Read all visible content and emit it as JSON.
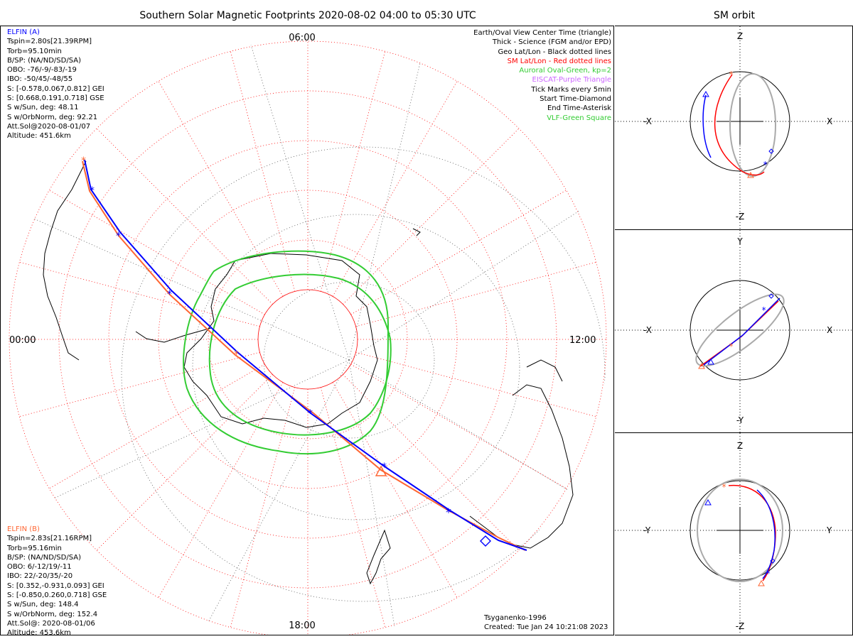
{
  "main_title": "Southern Solar Magnetic Footprints 2020-08-02 04:00 to 05:30 UTC",
  "orbit_title": "SM orbit",
  "hour_labels": {
    "top": "06:00",
    "left": "00:00",
    "right": "12:00",
    "bottom": "18:00"
  },
  "elfin_a": {
    "name": "ELFIN (A)",
    "color": "#0000ff",
    "lines": [
      "Tspin=2.80s[21.39RPM]",
      "Torb=95.10min",
      "B/SP: (NA/ND/SD/SA)",
      "OBO: -76/-9/-83/-19",
      "IBO: -50/45/-48/55",
      "S: [-0.578,0.067,0.812] GEI",
      "S: [0.668,0.191,0.718] GSE",
      "S w/Sun, deg: 48.11",
      "S w/OrbNorm, deg: 92.21",
      "Att.Sol@2020-08-01/07",
      "Altitude: 451.6km"
    ]
  },
  "elfin_b": {
    "name": "ELFIN (B)",
    "color": "#ff6633",
    "lines": [
      "Tspin=2.83s[21.16RPM]",
      "Torb=95.16min",
      "B/SP: (NA/ND/SD/SA)",
      "OBO: 6/-12/19/-11",
      "IBO: 22/-20/35/-20",
      "S: [0.352,-0.931,0.093] GEI",
      "S: [-0.850,0.260,0.718] GSE",
      "S w/Sun, deg: 148.4",
      "S w/OrbNorm, deg: 152.4",
      "Att.Sol@: 2020-08-01/06",
      "Altitude: 453.6km"
    ]
  },
  "legend": [
    {
      "text": "Earth/Oval View Center Time (triangle)",
      "color": "#000000"
    },
    {
      "text": "Thick - Science (FGM and/or EPD)",
      "color": "#000000"
    },
    {
      "text": "Geo Lat/Lon - Black dotted lines",
      "color": "#000000"
    },
    {
      "text": "SM Lat/Lon - Red dotted lines",
      "color": "#ff0000"
    },
    {
      "text": "Auroral Oval-Green, kp=2",
      "color": "#33cc33"
    },
    {
      "text": "EISCAT-Purple Triangle",
      "color": "#cc66ff"
    },
    {
      "text": "Tick Marks every 5min",
      "color": "#000000"
    },
    {
      "text": "Start Time-Diamond",
      "color": "#000000"
    },
    {
      "text": "End Time-Asterisk",
      "color": "#000000"
    },
    {
      "text": "VLF-Green Square",
      "color": "#33cc33"
    }
  ],
  "credits": [
    "Tsyganenko-1996",
    "Created: Tue Jan 24 10:21:08 2023"
  ],
  "orbit_panels": [
    {
      "top": "Z",
      "bottom": "-Z",
      "left": "-X",
      "right": "X"
    },
    {
      "top": "Y",
      "bottom": "-Y",
      "left": "-X",
      "right": "X"
    },
    {
      "top": "Z",
      "bottom": "-Z",
      "left": "-Y",
      "right": "Y"
    }
  ],
  "colors": {
    "elfin_a": "#0000ff",
    "elfin_b": "#ff6633",
    "sm_grid": "#ff0000",
    "oval": "#33cc33",
    "geo_grid": "#000000"
  }
}
